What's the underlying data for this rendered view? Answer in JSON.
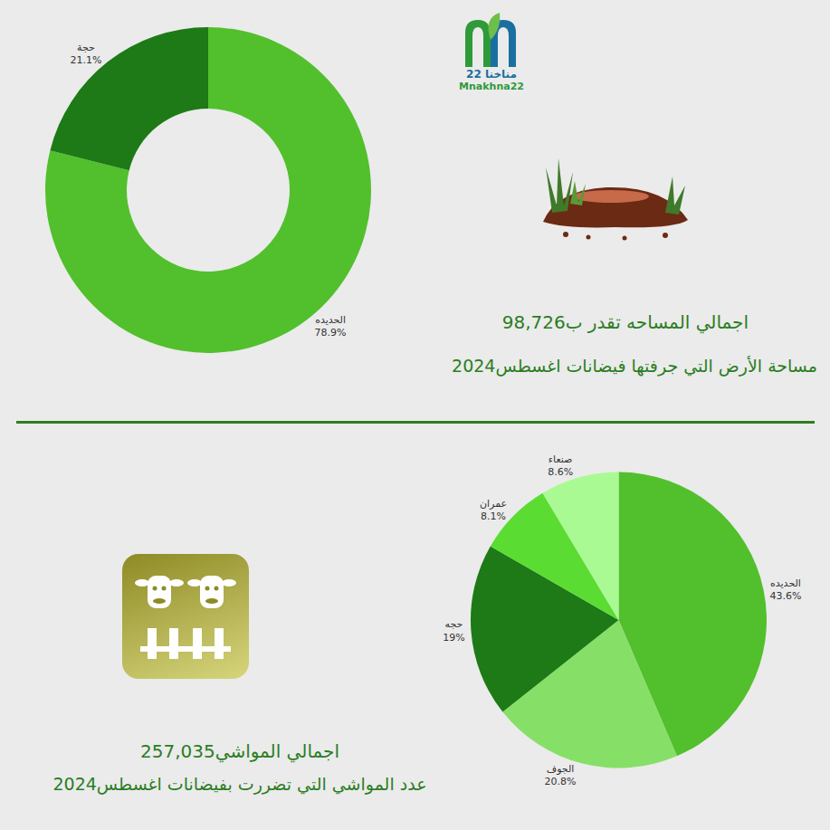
{
  "header": {
    "logo_text": "مناخنا 22",
    "logo_subtext": "Mnakhna22"
  },
  "chart_data": [
    {
      "type": "donut",
      "title": "اجمالي المساحه تقدر ب98,726",
      "subtitle": "مساحة الأرض التي جرفتها فيضانات اغسطس2024",
      "categories": [
        "الحديده",
        "حجة"
      ],
      "values": [
        78.9,
        21.1
      ],
      "value_labels": [
        "78.9%",
        "21.1%"
      ],
      "colors": [
        "#52c02c",
        "#1d7a16"
      ],
      "data_labels": true
    },
    {
      "type": "pie",
      "title": "اجمالي المواشي257,035",
      "subtitle": "عدد المواشي التي تضررت بفيضانات اغسطس2024",
      "categories": [
        "الحديده",
        "الجوف",
        "حجه",
        "عمران",
        "صنعاء"
      ],
      "values": [
        43.6,
        20.8,
        19,
        8.1,
        8.6
      ],
      "value_labels": [
        "43.6%",
        "20.8%",
        "19%",
        "8.1%",
        "8.6%"
      ],
      "colors": [
        "#52c02c",
        "#86e067",
        "#1d7a16",
        "#5bdc33",
        "#aafa93"
      ],
      "data_labels": true
    }
  ]
}
